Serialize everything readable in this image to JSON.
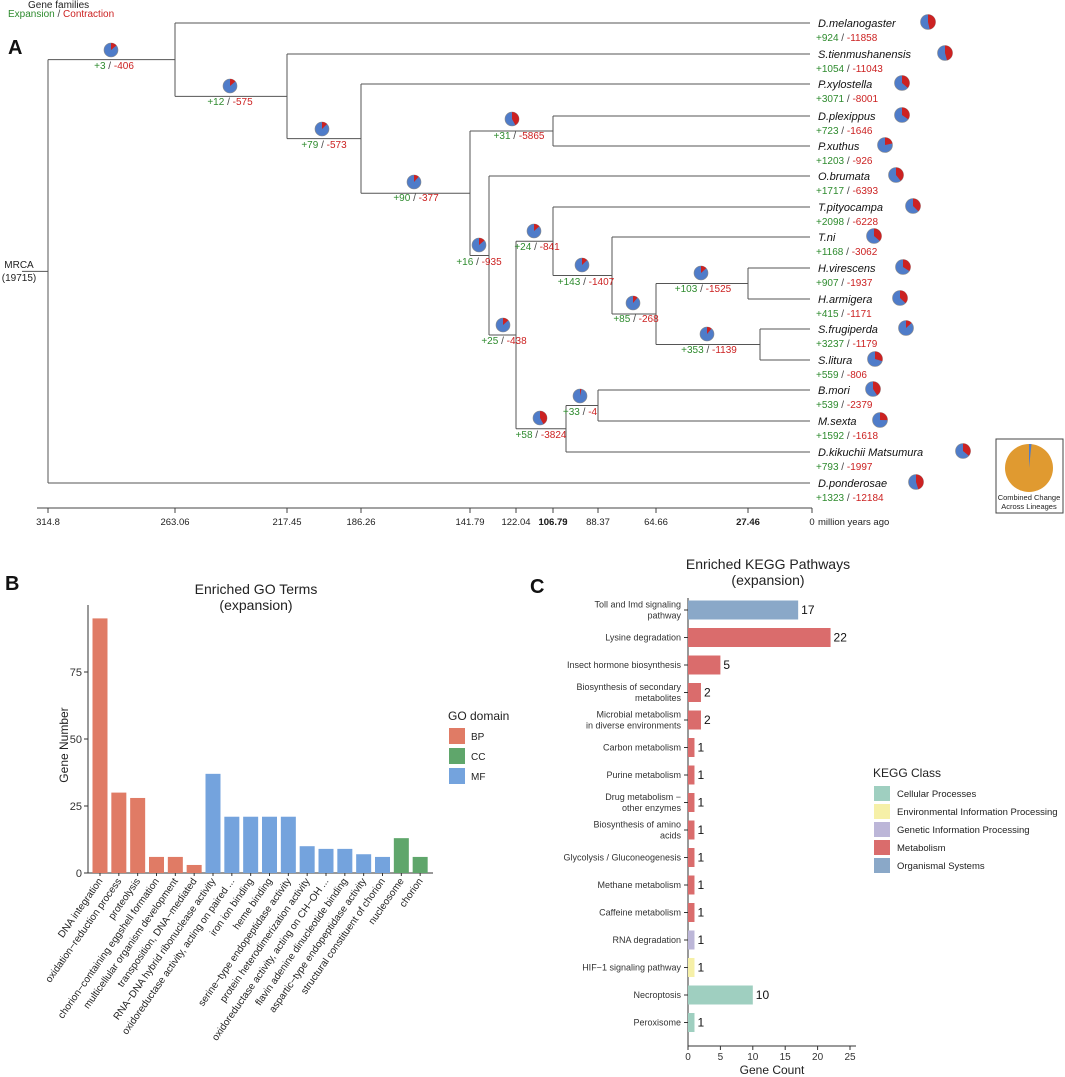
{
  "panel_labels": {
    "a": "A",
    "b": "B",
    "c": "C"
  },
  "legend_header": {
    "title": "Gene families",
    "expansion": "Expansion",
    "separator": " / ",
    "contraction": "Contraction"
  },
  "colors": {
    "expansion": "#2e8b2e",
    "contraction": "#cc2222",
    "pie_main": "#4f7cc9",
    "bp": "#e07b65",
    "cc": "#5fa66b",
    "mf": "#74a3dd",
    "combined": "#e09a30"
  },
  "chart_data": [
    {
      "type": "phylogenetic-tree",
      "title": "",
      "root": {
        "name": "MRCA",
        "count": "(19715)"
      },
      "axis_unit": "million years ago",
      "axis_ticks": [
        "314.8",
        "263.06",
        "217.45",
        "186.26",
        "141.79",
        "122.04",
        "106.79",
        "106.73",
        "88.37",
        "64.66",
        "27.46",
        "0"
      ],
      "tips": [
        {
          "name": "D.melanogaster",
          "exp": "+924",
          "con": "-11858"
        },
        {
          "name": "S.tienmushanensis",
          "exp": "+1054",
          "con": "-11043"
        },
        {
          "name": "P.xylostella",
          "exp": "+3071",
          "con": "-8001"
        },
        {
          "name": "D.plexippus",
          "exp": "+723",
          "con": "-1646"
        },
        {
          "name": "P.xuthus",
          "exp": "+1203",
          "con": "-926"
        },
        {
          "name": "O.brumata",
          "exp": "+1717",
          "con": "-6393"
        },
        {
          "name": "T.pityocampa",
          "exp": "+2098",
          "con": "-6228"
        },
        {
          "name": "T.ni",
          "exp": "+1168",
          "con": "-3062"
        },
        {
          "name": "H.virescens",
          "exp": "+907",
          "con": "-1937"
        },
        {
          "name": "H.armigera",
          "exp": "+415",
          "con": "-1171"
        },
        {
          "name": "S.frugiperda",
          "exp": "+3237",
          "con": "-1179"
        },
        {
          "name": "S.litura",
          "exp": "+559",
          "con": "-806"
        },
        {
          "name": "B.mori",
          "exp": "+539",
          "con": "-2379"
        },
        {
          "name": "M.sexta",
          "exp": "+1592",
          "con": "-1618"
        },
        {
          "name": "D.kikuchii Matsumura",
          "exp": "+793",
          "con": "-1997"
        },
        {
          "name": "D.ponderosae",
          "exp": "+1323",
          "con": "-12184"
        }
      ],
      "internal_nodes": [
        {
          "exp": "+3",
          "con": "-406"
        },
        {
          "exp": "+12",
          "con": "-575"
        },
        {
          "exp": "+79",
          "con": "-573"
        },
        {
          "exp": "+90",
          "con": "-377"
        },
        {
          "exp": "+16",
          "con": "-935"
        },
        {
          "exp": "+31",
          "con": "-5865"
        },
        {
          "exp": "+25",
          "con": "-438"
        },
        {
          "exp": "+24",
          "con": "-841"
        },
        {
          "exp": "+58",
          "con": "-3824"
        },
        {
          "exp": "+143",
          "con": "-1407"
        },
        {
          "exp": "+33",
          "con": "-4"
        },
        {
          "exp": "+85",
          "con": "-268"
        },
        {
          "exp": "+103",
          "con": "-1525"
        },
        {
          "exp": "+353",
          "con": "-1139"
        }
      ],
      "combined_legend": {
        "line1": "Combined Change",
        "line2": "Across Lineages"
      }
    },
    {
      "type": "bar",
      "title": "Enriched GO Terms",
      "subtitle": "(expansion)",
      "xlabel": "",
      "ylabel": "Gene Number",
      "ylim": [
        0,
        100
      ],
      "yticks": [
        0,
        25,
        50,
        75
      ],
      "legend_title": "GO domain",
      "legend": [
        {
          "key": "BP",
          "label": "BP"
        },
        {
          "key": "CC",
          "label": "CC"
        },
        {
          "key": "MF",
          "label": "MF"
        }
      ],
      "categories": [
        "DNA integration",
        "oxidation−reduction process",
        "proteolysis",
        "chorion−containing eggshell formation",
        "multicellular organism development",
        "transposition, DNA−mediated",
        "RNA−DNA hybrid ribonuclease activity",
        "oxidoreductase activity, acting on paired ...",
        "iron ion binding",
        "heme binding",
        "serine−type endopeptidase activity",
        "protein heterodimerization activity",
        "oxidoreductase activity, acting on CH−OH ...",
        "flavin adenine dinucleotide binding",
        "aspartic−type endopeptidase activity",
        "structural constituent of chorion",
        "nucleosome",
        "chorion"
      ],
      "values": [
        95,
        30,
        28,
        6,
        6,
        3,
        37,
        21,
        21,
        21,
        21,
        10,
        9,
        9,
        7,
        6,
        13,
        6
      ],
      "domains": [
        "BP",
        "BP",
        "BP",
        "BP",
        "BP",
        "BP",
        "MF",
        "MF",
        "MF",
        "MF",
        "MF",
        "MF",
        "MF",
        "MF",
        "MF",
        "MF",
        "CC",
        "CC"
      ]
    },
    {
      "type": "bar",
      "orientation": "horizontal",
      "title": "Enriched KEGG Pathways",
      "subtitle": "(expansion)",
      "xlabel": "Gene Count",
      "ylabel": "",
      "xlim": [
        0,
        25
      ],
      "xticks": [
        0,
        5,
        10,
        15,
        20,
        25
      ],
      "legend_title": "KEGG Class",
      "legend": [
        {
          "label": "Cellular Processes",
          "color": "#9fcfc0"
        },
        {
          "label": "Environmental Information Processing",
          "color": "#f6f0a8"
        },
        {
          "label": "Genetic Information Processing",
          "color": "#bcb6d8"
        },
        {
          "label": "Metabolism",
          "color": "#da6c6c"
        },
        {
          "label": "Organismal Systems",
          "color": "#8aa8c8"
        }
      ],
      "bars": [
        {
          "label": [
            "Toll and Imd signaling",
            "pathway"
          ],
          "value": 17,
          "cls": "Organismal Systems"
        },
        {
          "label": [
            "Lysine degradation"
          ],
          "value": 22,
          "cls": "Metabolism"
        },
        {
          "label": [
            "Insect hormone biosynthesis"
          ],
          "value": 5,
          "cls": "Metabolism"
        },
        {
          "label": [
            "Biosynthesis of secondary",
            "metabolites"
          ],
          "value": 2,
          "cls": "Metabolism"
        },
        {
          "label": [
            "Microbial metabolism",
            "in diverse environments"
          ],
          "value": 2,
          "cls": "Metabolism"
        },
        {
          "label": [
            "Carbon metabolism"
          ],
          "value": 1,
          "cls": "Metabolism"
        },
        {
          "label": [
            "Purine metabolism"
          ],
          "value": 1,
          "cls": "Metabolism"
        },
        {
          "label": [
            "Drug metabolism −",
            "other enzymes"
          ],
          "value": 1,
          "cls": "Metabolism"
        },
        {
          "label": [
            "Biosynthesis of amino",
            "acids"
          ],
          "value": 1,
          "cls": "Metabolism"
        },
        {
          "label": [
            "Glycolysis / Gluconeogenesis"
          ],
          "value": 1,
          "cls": "Metabolism"
        },
        {
          "label": [
            "Methane metabolism"
          ],
          "value": 1,
          "cls": "Metabolism"
        },
        {
          "label": [
            "Caffeine metabolism"
          ],
          "value": 1,
          "cls": "Metabolism"
        },
        {
          "label": [
            "RNA degradation"
          ],
          "value": 1,
          "cls": "Genetic Information Processing"
        },
        {
          "label": [
            "HIF−1 signaling pathway"
          ],
          "value": 1,
          "cls": "Environmental Information Processing"
        },
        {
          "label": [
            "Necroptosis"
          ],
          "value": 10,
          "cls": "Cellular Processes"
        },
        {
          "label": [
            "Peroxisome"
          ],
          "value": 1,
          "cls": "Cellular Processes"
        }
      ]
    }
  ]
}
